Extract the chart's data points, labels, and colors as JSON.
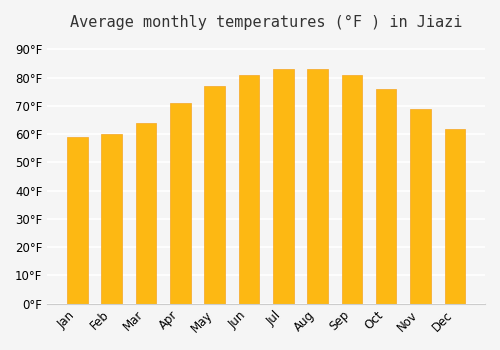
{
  "title": "Average monthly temperatures (°F ) in Jiazi",
  "months": [
    "Jan",
    "Feb",
    "Mar",
    "Apr",
    "May",
    "Jun",
    "Jul",
    "Aug",
    "Sep",
    "Oct",
    "Nov",
    "Dec"
  ],
  "values": [
    59,
    60,
    64,
    71,
    77,
    81,
    83,
    83,
    81,
    76,
    69,
    62
  ],
  "bar_color": "#FDB813",
  "bar_edge_color": "#F5A623",
  "background_color": "#F5F5F5",
  "grid_color": "#FFFFFF",
  "yticks": [
    0,
    10,
    20,
    30,
    40,
    50,
    60,
    70,
    80,
    90
  ],
  "ylim": [
    0,
    93
  ],
  "title_fontsize": 11,
  "tick_fontsize": 8.5
}
